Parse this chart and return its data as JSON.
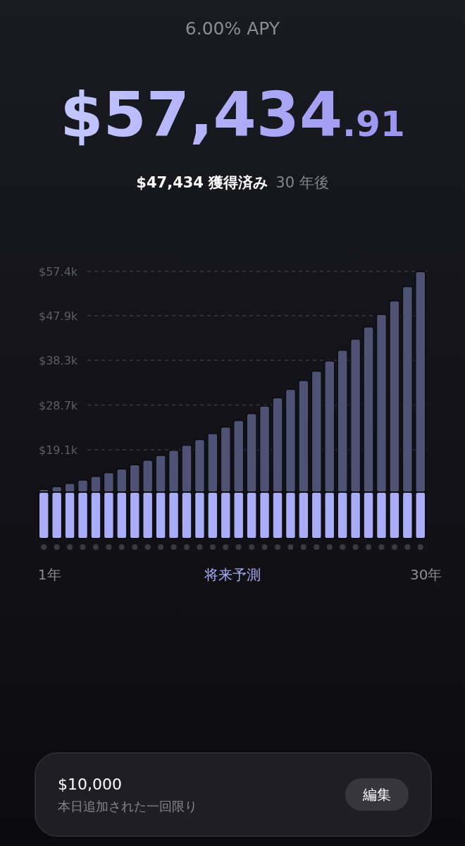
{
  "chart_data": {
    "type": "bar",
    "title": "6.00% APY",
    "subtitle": "$57,434.91",
    "annotations": [
      "$47,434 獲得済み",
      "30 年後",
      "$10,000",
      "本日追加された一回限り",
      "編集"
    ],
    "xlabel": "将来予測",
    "categories": [
      "1年",
      null,
      null,
      null,
      null,
      null,
      null,
      null,
      null,
      null,
      null,
      null,
      null,
      null,
      null,
      null,
      null,
      null,
      null,
      null,
      null,
      null,
      null,
      null,
      null,
      null,
      null,
      null,
      null,
      "30年"
    ],
    "stacked": true,
    "series": [
      {
        "color": "#a9acf7",
        "values": [
          10000,
          10000,
          10000,
          10000,
          10000,
          10000,
          10000,
          10000,
          10000,
          10000,
          10000,
          10000,
          10000,
          10000,
          10000,
          10000,
          10000,
          10000,
          10000,
          10000,
          10000,
          10000,
          10000,
          10000,
          10000,
          10000,
          10000,
          10000,
          10000,
          10000
        ]
      },
      {
        "color": "#4f5274",
        "values": [
          600,
          1200,
          1900,
          2600,
          3400,
          4200,
          5000,
          5900,
          6900,
          7900,
          9000,
          10100,
          11300,
          12600,
          14000,
          15400,
          16900,
          18500,
          20300,
          22100,
          24000,
          26000,
          28200,
          30500,
          32900,
          35500,
          38200,
          41100,
          44200,
          47400
        ]
      }
    ],
    "ylim": [
      0,
      57400
    ],
    "yticks": [
      {
        "value": 19100,
        "label": "$19.1k"
      },
      {
        "value": 28700,
        "label": "$28.7k"
      },
      {
        "value": 38300,
        "label": "$38.3k"
      },
      {
        "value": 47900,
        "label": "$47.9k"
      },
      {
        "value": 57400,
        "label": "$57.4k"
      }
    ],
    "grid": "y"
  }
}
